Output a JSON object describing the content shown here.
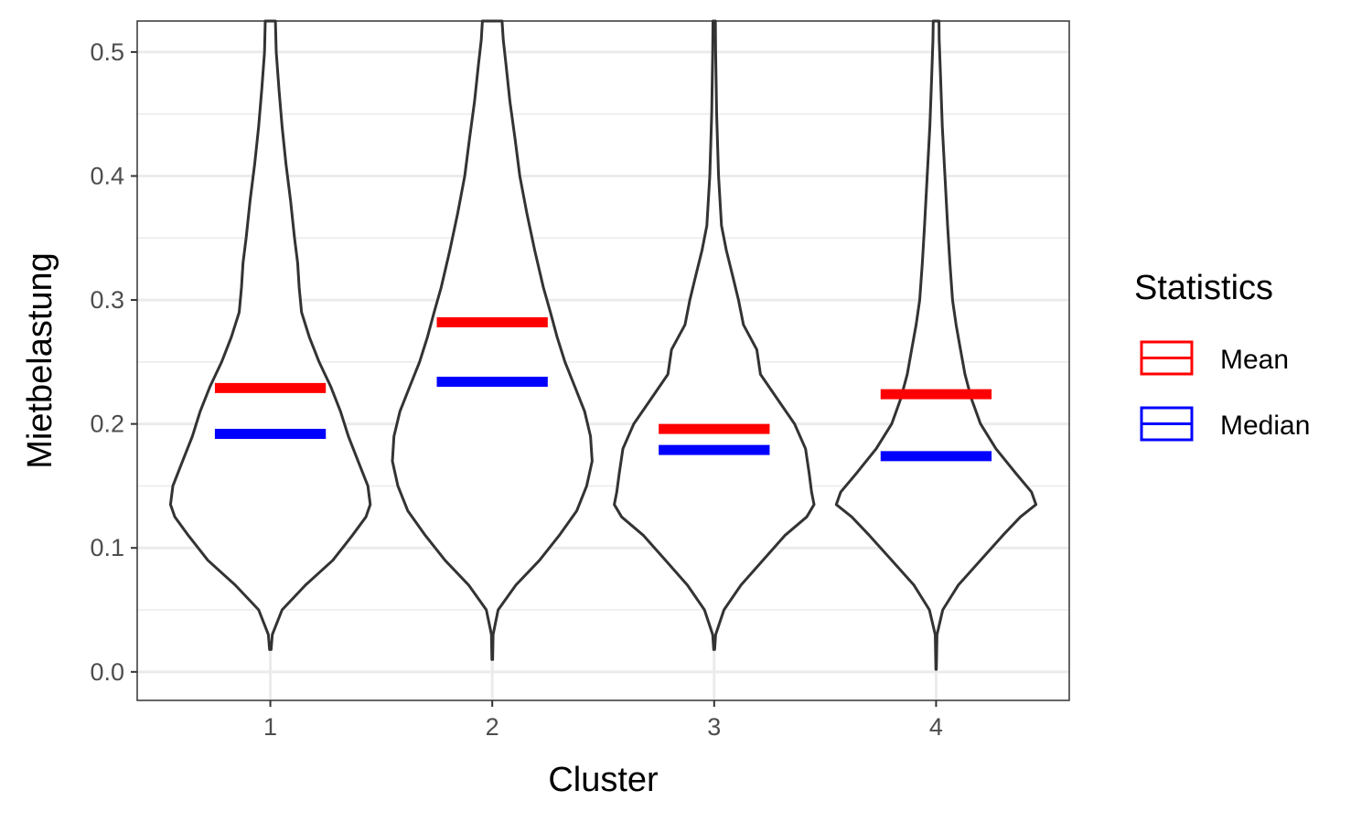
{
  "chart_data": {
    "type": "violin",
    "xlabel": "Cluster",
    "ylabel": "Mietbelastung",
    "categories": [
      "1",
      "2",
      "3",
      "4"
    ],
    "ylim": [
      -0.023,
      0.525
    ],
    "y_ticks": [
      "0.0",
      "0.1",
      "0.2",
      "0.3",
      "0.4",
      "0.5"
    ],
    "grid": true,
    "legend": {
      "title": "Statistics",
      "placement": "right",
      "items": [
        {
          "label": "Mean",
          "color": "#ff0000"
        },
        {
          "label": "Median",
          "color": "#0000ff"
        }
      ]
    },
    "violins": [
      {
        "category": "1",
        "min": 0.018,
        "mean": 0.229,
        "median": 0.192,
        "profile": [
          [
            0.018,
            0.002
          ],
          [
            0.03,
            0.005
          ],
          [
            0.05,
            0.03
          ],
          [
            0.07,
            0.09
          ],
          [
            0.09,
            0.16
          ],
          [
            0.11,
            0.21
          ],
          [
            0.125,
            0.245
          ],
          [
            0.135,
            0.256
          ],
          [
            0.15,
            0.25
          ],
          [
            0.17,
            0.225
          ],
          [
            0.19,
            0.2
          ],
          [
            0.21,
            0.18
          ],
          [
            0.23,
            0.155
          ],
          [
            0.25,
            0.125
          ],
          [
            0.27,
            0.1
          ],
          [
            0.29,
            0.08
          ],
          [
            0.31,
            0.074
          ],
          [
            0.33,
            0.07
          ],
          [
            0.35,
            0.062
          ],
          [
            0.38,
            0.052
          ],
          [
            0.41,
            0.04
          ],
          [
            0.44,
            0.03
          ],
          [
            0.47,
            0.022
          ],
          [
            0.5,
            0.015
          ],
          [
            0.525,
            0.013
          ]
        ]
      },
      {
        "category": "2",
        "min": 0.01,
        "mean": 0.282,
        "median": 0.234,
        "profile": [
          [
            0.01,
            0.001
          ],
          [
            0.03,
            0.002
          ],
          [
            0.05,
            0.015
          ],
          [
            0.07,
            0.06
          ],
          [
            0.09,
            0.12
          ],
          [
            0.11,
            0.17
          ],
          [
            0.13,
            0.215
          ],
          [
            0.15,
            0.24
          ],
          [
            0.17,
            0.254
          ],
          [
            0.19,
            0.25
          ],
          [
            0.21,
            0.235
          ],
          [
            0.23,
            0.21
          ],
          [
            0.25,
            0.185
          ],
          [
            0.27,
            0.165
          ],
          [
            0.29,
            0.148
          ],
          [
            0.31,
            0.13
          ],
          [
            0.34,
            0.108
          ],
          [
            0.37,
            0.088
          ],
          [
            0.4,
            0.07
          ],
          [
            0.43,
            0.058
          ],
          [
            0.46,
            0.045
          ],
          [
            0.49,
            0.035
          ],
          [
            0.51,
            0.028
          ],
          [
            0.525,
            0.025
          ]
        ]
      },
      {
        "category": "3",
        "min": 0.018,
        "mean": 0.196,
        "median": 0.179,
        "profile": [
          [
            0.018,
            0.002
          ],
          [
            0.03,
            0.006
          ],
          [
            0.05,
            0.04
          ],
          [
            0.07,
            0.11
          ],
          [
            0.09,
            0.2
          ],
          [
            0.11,
            0.29
          ],
          [
            0.125,
            0.38
          ],
          [
            0.135,
            0.41
          ],
          [
            0.145,
            0.4
          ],
          [
            0.16,
            0.39
          ],
          [
            0.18,
            0.375
          ],
          [
            0.2,
            0.33
          ],
          [
            0.22,
            0.26
          ],
          [
            0.24,
            0.19
          ],
          [
            0.26,
            0.175
          ],
          [
            0.28,
            0.12
          ],
          [
            0.3,
            0.1
          ],
          [
            0.32,
            0.075
          ],
          [
            0.34,
            0.05
          ],
          [
            0.36,
            0.03
          ],
          [
            0.4,
            0.018
          ],
          [
            0.45,
            0.01
          ],
          [
            0.5,
            0.006
          ],
          [
            0.525,
            0.005
          ]
        ]
      },
      {
        "category": "4",
        "min": 0.002,
        "mean": 0.224,
        "median": 0.174,
        "profile": [
          [
            0.002,
            0.001
          ],
          [
            0.03,
            0.004
          ],
          [
            0.05,
            0.03
          ],
          [
            0.07,
            0.1
          ],
          [
            0.09,
            0.2
          ],
          [
            0.11,
            0.3
          ],
          [
            0.125,
            0.38
          ],
          [
            0.135,
            0.45
          ],
          [
            0.145,
            0.43
          ],
          [
            0.16,
            0.36
          ],
          [
            0.18,
            0.27
          ],
          [
            0.2,
            0.2
          ],
          [
            0.22,
            0.16
          ],
          [
            0.24,
            0.13
          ],
          [
            0.26,
            0.11
          ],
          [
            0.28,
            0.09
          ],
          [
            0.3,
            0.074
          ],
          [
            0.33,
            0.062
          ],
          [
            0.36,
            0.052
          ],
          [
            0.4,
            0.04
          ],
          [
            0.44,
            0.028
          ],
          [
            0.48,
            0.02
          ],
          [
            0.51,
            0.014
          ],
          [
            0.525,
            0.013
          ]
        ]
      }
    ]
  }
}
